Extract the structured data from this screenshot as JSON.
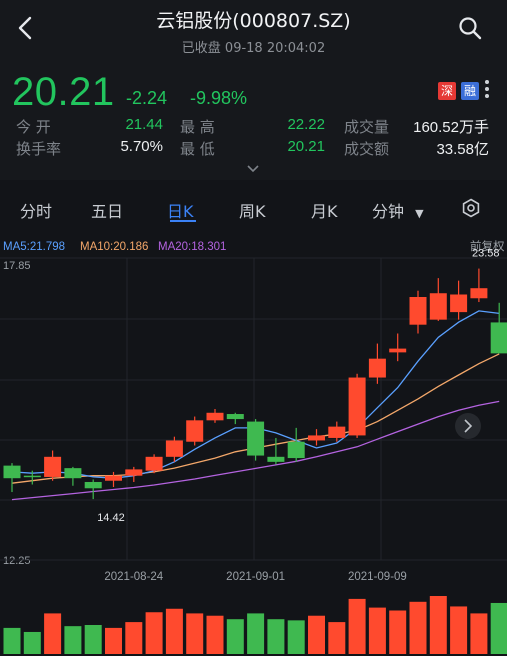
{
  "header": {
    "title": "云铝股份(000807.SZ)",
    "status": "已收盘",
    "datetime": "09-18 20:04:02"
  },
  "quote": {
    "price": "20.21",
    "change": "-2.24",
    "change_pct": "-9.98%",
    "tags": [
      "深",
      "融"
    ],
    "stats": [
      {
        "label": "今  开",
        "value": "21.44",
        "color": "green"
      },
      {
        "label": "最  高",
        "value": "22.22",
        "color": "green"
      },
      {
        "label": "成交量",
        "value": "160.52万手",
        "color": "white"
      },
      {
        "label": "换手率",
        "value": "5.70%",
        "color": "white"
      },
      {
        "label": "最  低",
        "value": "20.21",
        "color": "green"
      },
      {
        "label": "成交额",
        "value": "33.58亿",
        "color": "white"
      }
    ]
  },
  "tabs": [
    {
      "label": "分时"
    },
    {
      "label": "五日"
    },
    {
      "label": "日K",
      "active": true
    },
    {
      "label": "周K"
    },
    {
      "label": "月K"
    },
    {
      "label": "分钟"
    }
  ],
  "chart_data": {
    "type": "candlestick",
    "ma_labels": [
      "MA5:21.798",
      "MA10:20.186",
      "MA20:18.301"
    ],
    "ma_colors": [
      "#5aa0ff",
      "#f3a76a",
      "#b463e0"
    ],
    "adjust_label": "前复权",
    "y_max_label": "17.85",
    "y_min_label": "12.25",
    "high_label": "23.58",
    "low_label": "14.42",
    "y_range": [
      12.0,
      24.0
    ],
    "x_labels": [
      {
        "label": "2021-08-24",
        "index": 6
      },
      {
        "label": "2021-09-01",
        "index": 12
      },
      {
        "label": "2021-09-09",
        "index": 18
      }
    ],
    "up_color": "#ff4a2e",
    "down_color": "#3fb950",
    "candles": [
      {
        "o": 15.75,
        "c": 15.25,
        "h": 15.85,
        "l": 14.7,
        "v": 0.45
      },
      {
        "o": 15.35,
        "c": 15.3,
        "h": 15.55,
        "l": 15.0,
        "v": 0.38
      },
      {
        "o": 15.3,
        "c": 16.1,
        "h": 16.35,
        "l": 15.15,
        "v": 0.7
      },
      {
        "o": 15.65,
        "c": 15.25,
        "h": 15.7,
        "l": 14.95,
        "v": 0.48
      },
      {
        "o": 15.1,
        "c": 14.85,
        "h": 15.2,
        "l": 14.42,
        "v": 0.5
      },
      {
        "o": 15.15,
        "c": 15.35,
        "h": 15.5,
        "l": 14.9,
        "v": 0.45
      },
      {
        "o": 15.35,
        "c": 15.6,
        "h": 15.7,
        "l": 15.1,
        "v": 0.55
      },
      {
        "o": 15.55,
        "c": 16.1,
        "h": 16.2,
        "l": 15.45,
        "v": 0.72
      },
      {
        "o": 16.1,
        "c": 16.75,
        "h": 16.9,
        "l": 15.9,
        "v": 0.78
      },
      {
        "o": 16.7,
        "c": 17.55,
        "h": 17.7,
        "l": 16.55,
        "v": 0.7
      },
      {
        "o": 17.55,
        "c": 17.85,
        "h": 18.0,
        "l": 17.45,
        "v": 0.66
      },
      {
        "o": 17.8,
        "c": 17.6,
        "h": 17.85,
        "l": 17.4,
        "v": 0.6
      },
      {
        "o": 17.5,
        "c": 16.15,
        "h": 17.6,
        "l": 15.95,
        "v": 0.7
      },
      {
        "o": 16.1,
        "c": 15.9,
        "h": 16.85,
        "l": 15.8,
        "v": 0.6
      },
      {
        "o": 16.7,
        "c": 16.05,
        "h": 17.25,
        "l": 15.9,
        "v": 0.58
      },
      {
        "o": 16.75,
        "c": 16.95,
        "h": 17.2,
        "l": 16.55,
        "v": 0.66
      },
      {
        "o": 16.85,
        "c": 17.3,
        "h": 17.5,
        "l": 16.7,
        "v": 0.55
      },
      {
        "o": 16.95,
        "c": 19.25,
        "h": 19.4,
        "l": 16.85,
        "v": 0.95
      },
      {
        "o": 19.25,
        "c": 20.0,
        "h": 20.6,
        "l": 19.0,
        "v": 0.8
      },
      {
        "o": 20.25,
        "c": 20.4,
        "h": 21.0,
        "l": 19.9,
        "v": 0.75
      },
      {
        "o": 21.35,
        "c": 22.45,
        "h": 22.7,
        "l": 21.0,
        "v": 0.9
      },
      {
        "o": 21.55,
        "c": 22.6,
        "h": 23.2,
        "l": 21.5,
        "v": 1.0
      },
      {
        "o": 21.85,
        "c": 22.55,
        "h": 23.1,
        "l": 21.55,
        "v": 0.82
      },
      {
        "o": 22.4,
        "c": 22.8,
        "h": 23.58,
        "l": 22.25,
        "v": 0.7
      },
      {
        "o": 21.44,
        "c": 20.21,
        "h": 22.22,
        "l": 20.21,
        "v": 0.88
      }
    ],
    "ma5": [
      15.5,
      15.45,
      15.5,
      15.45,
      15.3,
      15.25,
      15.35,
      15.55,
      15.9,
      16.4,
      16.85,
      17.25,
      17.25,
      17.05,
      16.75,
      16.45,
      16.65,
      17.25,
      18.05,
      18.85,
      19.9,
      20.85,
      21.45,
      21.9,
      21.8
    ],
    "ma10": [
      15.05,
      15.15,
      15.25,
      15.3,
      15.35,
      15.35,
      15.4,
      15.5,
      15.65,
      15.85,
      16.05,
      16.3,
      16.45,
      16.6,
      16.75,
      16.9,
      17.0,
      17.15,
      17.5,
      17.95,
      18.4,
      18.9,
      19.35,
      19.8,
      20.19
    ],
    "ma20": [
      14.4,
      14.48,
      14.56,
      14.64,
      14.72,
      14.8,
      14.88,
      14.98,
      15.1,
      15.22,
      15.36,
      15.5,
      15.64,
      15.78,
      15.92,
      16.1,
      16.3,
      16.5,
      16.8,
      17.1,
      17.4,
      17.7,
      17.95,
      18.15,
      18.3
    ]
  }
}
